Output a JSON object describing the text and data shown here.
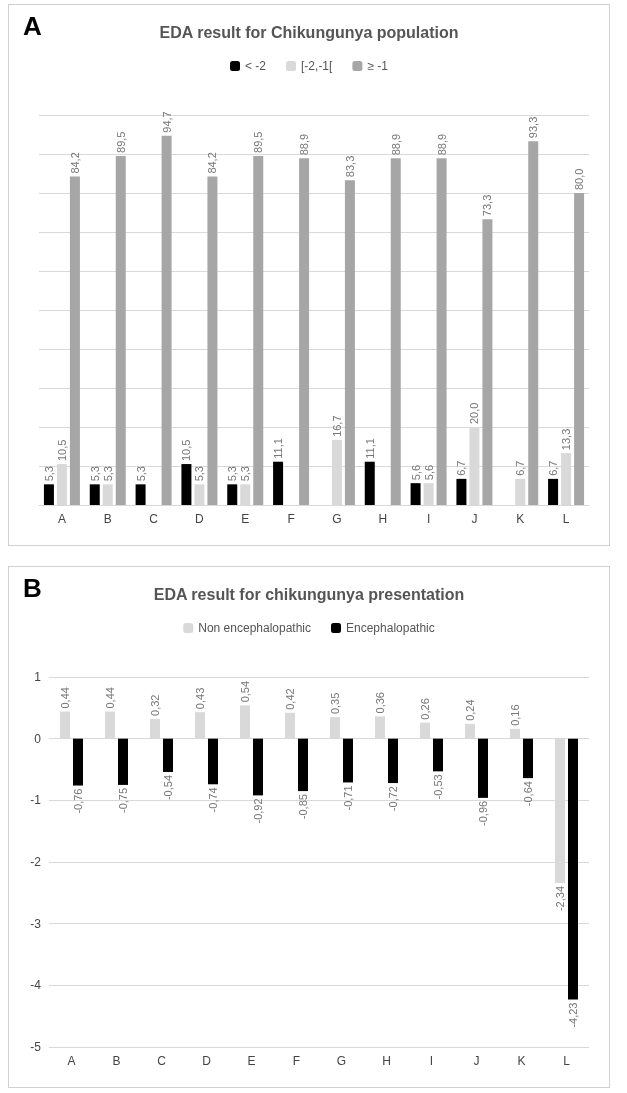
{
  "chart_data": [
    {
      "type": "bar",
      "title": "EDA result for Chikungunya population",
      "annotations": [
        "A"
      ],
      "categories": [
        "A",
        "B",
        "C",
        "D",
        "E",
        "F",
        "G",
        "H",
        "I",
        "J",
        "K",
        "L"
      ],
      "series": [
        {
          "name": "< -2",
          "color": "#000000",
          "values": [
            5.3,
            5.3,
            5.3,
            10.5,
            5.3,
            11.1,
            null,
            11.1,
            5.6,
            6.7,
            null,
            6.7
          ],
          "value_labels": [
            "5,3",
            "5,3",
            "5,3",
            "10,5",
            "5,3",
            "11,1",
            null,
            "11,1",
            "5,6",
            "6,7",
            null,
            "6,7"
          ]
        },
        {
          "name": "[-2,-1[",
          "color": "#d9d9d9",
          "values": [
            10.5,
            5.3,
            null,
            5.3,
            5.3,
            null,
            16.7,
            null,
            5.6,
            20.0,
            6.7,
            13.3
          ],
          "value_labels": [
            "10,5",
            "5,3",
            null,
            "5,3",
            "5,3",
            null,
            "16,7",
            null,
            "5,6",
            "20,0",
            "6,7",
            "13,3"
          ]
        },
        {
          "name": "≥ -1",
          "color": "#a6a6a6",
          "values": [
            84.2,
            89.5,
            94.7,
            84.2,
            89.5,
            88.9,
            83.3,
            88.9,
            88.9,
            73.3,
            93.3,
            80.0
          ],
          "value_labels": [
            "84,2",
            "89,5",
            "94,7",
            "84,2",
            "89,5",
            "88,9",
            "83,3",
            "88,9",
            "88,9",
            "73,3",
            "93,3",
            "80,0"
          ]
        }
      ],
      "ylim": [
        0,
        100
      ],
      "yticks": [
        {
          "value": 0,
          "label": null
        },
        {
          "value": 10,
          "label": null
        },
        {
          "value": 20,
          "label": null
        },
        {
          "value": 30,
          "label": null
        },
        {
          "value": 40,
          "label": null
        },
        {
          "value": 50,
          "label": null
        },
        {
          "value": 60,
          "label": null
        },
        {
          "value": 70,
          "label": null
        },
        {
          "value": 80,
          "label": null
        },
        {
          "value": 90,
          "label": null
        },
        {
          "value": 100,
          "label": null
        }
      ],
      "tick_labels": "x",
      "grid": "y",
      "legend": "top"
    },
    {
      "type": "bar",
      "title": "EDA result for chikungunya presentation",
      "annotations": [
        "B"
      ],
      "categories": [
        "A",
        "B",
        "C",
        "D",
        "E",
        "F",
        "G",
        "H",
        "I",
        "J",
        "K",
        "L"
      ],
      "series": [
        {
          "name": "Non encephalopathic",
          "color": "#d9d9d9",
          "values": [
            0.44,
            0.44,
            0.32,
            0.43,
            0.54,
            0.42,
            0.35,
            0.36,
            0.26,
            0.24,
            0.16,
            -2.34
          ],
          "value_labels": [
            "0,44",
            "0,44",
            "0,32",
            "0,43",
            "0,54",
            "0,42",
            "0,35",
            "0,36",
            "0,26",
            "0,24",
            "0,16",
            "-2,34"
          ]
        },
        {
          "name": "Encephalopathic",
          "color": "#000000",
          "values": [
            -0.76,
            -0.75,
            -0.54,
            -0.74,
            -0.92,
            -0.85,
            -0.71,
            -0.72,
            -0.53,
            -0.96,
            -0.64,
            -4.23
          ],
          "value_labels": [
            "-0,76",
            "-0,75",
            "-0,54",
            "-0,74",
            "-0,92",
            "-0,85",
            "-0,71",
            "-0,72",
            "-0,53",
            "-0,96",
            "-0,64",
            "-4,23"
          ]
        }
      ],
      "ylim": [
        -5,
        1
      ],
      "yticks": [
        -5,
        -4,
        -3,
        -2,
        -1,
        0,
        1
      ],
      "grid": "y",
      "legend": "top"
    }
  ]
}
